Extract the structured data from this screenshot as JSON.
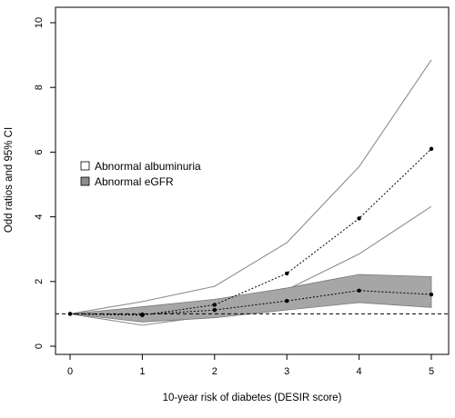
{
  "chart_data": {
    "type": "line",
    "title": "",
    "xlabel": "10-year risk of diabetes (DESIR score)",
    "ylabel": "Odd ratios and 95% CI",
    "xlim": [
      0,
      5
    ],
    "ylim": [
      0,
      10
    ],
    "x": [
      0,
      1,
      2,
      3,
      4,
      5
    ],
    "xticks": [
      "0",
      "1",
      "2",
      "3",
      "4",
      "5"
    ],
    "yticks": [
      "0",
      "2",
      "4",
      "6",
      "8",
      "10"
    ],
    "reference_line": 1,
    "grid": false,
    "legend_position": "left",
    "series": [
      {
        "name": "Abnormal albuminuria",
        "values": [
          1.0,
          0.96,
          1.28,
          2.25,
          3.95,
          6.1
        ],
        "ci_lower": [
          1.0,
          0.65,
          0.95,
          1.75,
          2.85,
          4.32
        ],
        "ci_upper": [
          1.0,
          1.38,
          1.85,
          3.2,
          5.55,
          8.85
        ],
        "band_color": "#ffffff",
        "line_style": "dotted"
      },
      {
        "name": "Abnormal eGFR",
        "values": [
          1.0,
          0.98,
          1.12,
          1.4,
          1.72,
          1.6
        ],
        "ci_lower": [
          1.0,
          0.75,
          0.88,
          1.12,
          1.35,
          1.2
        ],
        "ci_upper": [
          1.0,
          1.22,
          1.45,
          1.8,
          2.22,
          2.15
        ],
        "band_color": "#a6a6a6",
        "line_style": "dotted"
      }
    ]
  }
}
